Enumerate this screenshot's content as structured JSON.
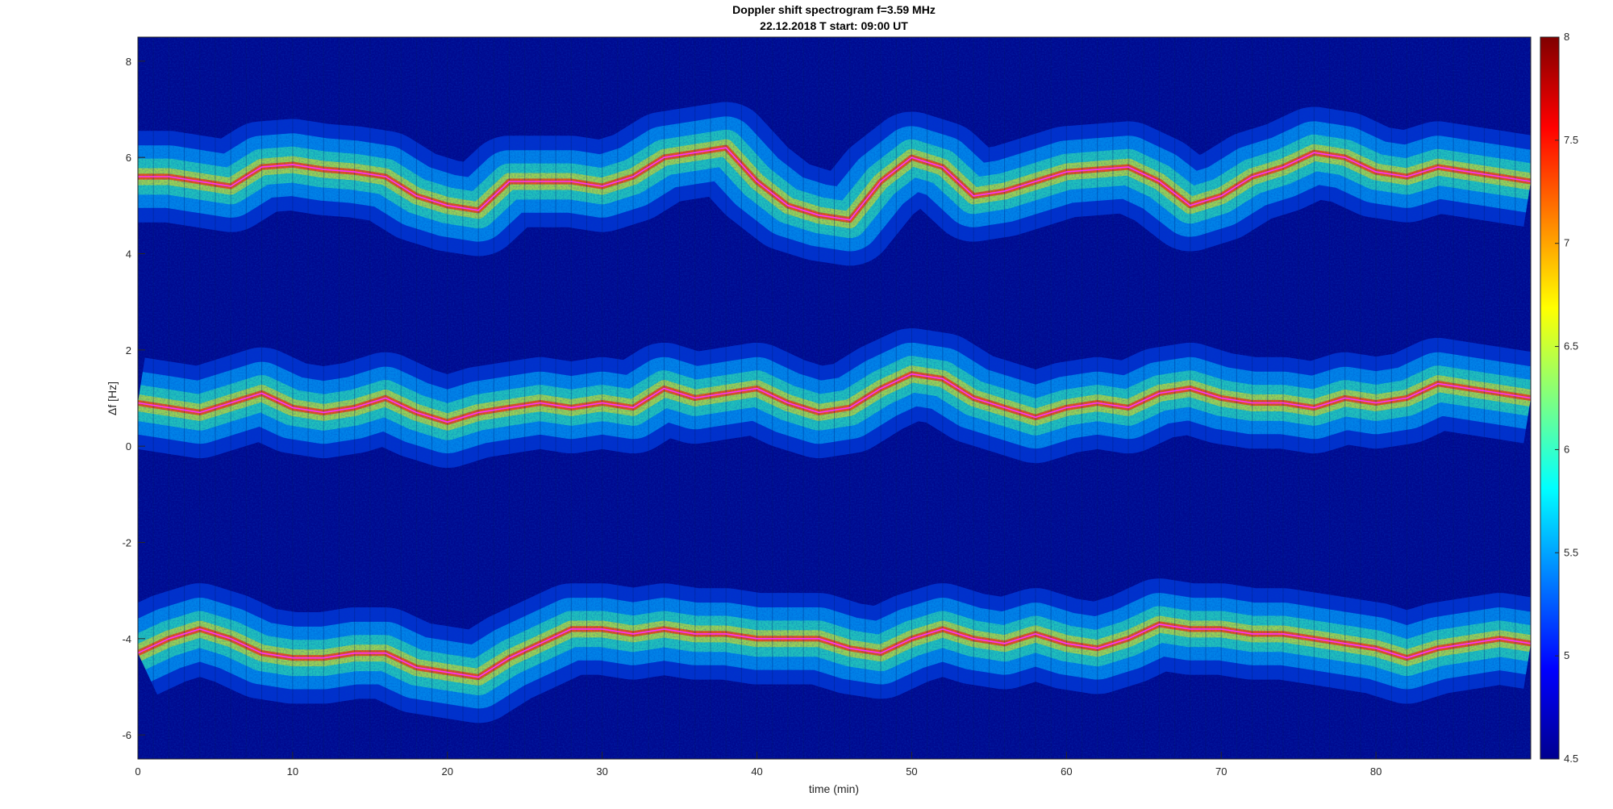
{
  "chart_data": {
    "type": "heatmap",
    "title": "Doppler shift spectrogram f=3.59 MHz",
    "subtitle": "22.12.2018   T start: 09:00 UT",
    "xlabel": "time (min)",
    "ylabel": "Δf [Hz]",
    "xlim": [
      0,
      90
    ],
    "ylim": [
      -6.5,
      8.5
    ],
    "x_ticks": [
      "0",
      "10",
      "20",
      "30",
      "40",
      "50",
      "60",
      "70",
      "80"
    ],
    "y_ticks": [
      "-6",
      "-4",
      "-2",
      "0",
      "2",
      "4",
      "6",
      "8"
    ],
    "colorbar": {
      "range": [
        4.5,
        8
      ],
      "ticks": [
        "4.5",
        "5",
        "5.5",
        "6",
        "6.5",
        "7",
        "7.5",
        "8"
      ],
      "colormap": "jet"
    },
    "background_color": "#000a8f",
    "trace_color": "#ff33ff",
    "series": [
      {
        "x": [
          0,
          2,
          4,
          6,
          8,
          10,
          12,
          14,
          16,
          18,
          20,
          22,
          24,
          26,
          28,
          30,
          32,
          34,
          36,
          38,
          40,
          42,
          44,
          46,
          48,
          50,
          52,
          54,
          56,
          58,
          60,
          62,
          64,
          66,
          68,
          70,
          72,
          74,
          76,
          78,
          80,
          82,
          84,
          86,
          88,
          90
        ],
        "y": [
          5.6,
          5.6,
          5.5,
          5.4,
          5.8,
          5.85,
          5.75,
          5.7,
          5.6,
          5.2,
          5.0,
          4.9,
          5.5,
          5.5,
          5.5,
          5.4,
          5.6,
          6.0,
          6.1,
          6.2,
          5.5,
          5.0,
          4.8,
          4.7,
          5.5,
          6.0,
          5.8,
          5.2,
          5.3,
          5.5,
          5.7,
          5.75,
          5.8,
          5.5,
          5.0,
          5.2,
          5.6,
          5.8,
          6.1,
          6.0,
          5.7,
          5.6,
          5.8,
          5.7,
          5.6,
          5.5
        ]
      },
      {
        "x": [
          0,
          2,
          4,
          6,
          8,
          10,
          12,
          14,
          16,
          18,
          20,
          22,
          24,
          26,
          28,
          30,
          32,
          34,
          36,
          38,
          40,
          42,
          44,
          46,
          48,
          50,
          52,
          54,
          56,
          58,
          60,
          62,
          64,
          66,
          68,
          70,
          72,
          74,
          76,
          78,
          80,
          82,
          84,
          86,
          88,
          90
        ],
        "y": [
          0.9,
          0.8,
          0.7,
          0.9,
          1.1,
          0.8,
          0.7,
          0.8,
          1.0,
          0.7,
          0.5,
          0.7,
          0.8,
          0.9,
          0.8,
          0.9,
          0.8,
          1.2,
          1.0,
          1.1,
          1.2,
          0.9,
          0.7,
          0.8,
          1.2,
          1.5,
          1.4,
          1.0,
          0.8,
          0.6,
          0.8,
          0.9,
          0.8,
          1.1,
          1.2,
          1.0,
          0.9,
          0.9,
          0.8,
          1.0,
          0.9,
          1.0,
          1.3,
          1.2,
          1.1,
          1.0
        ]
      },
      {
        "x": [
          0,
          2,
          4,
          6,
          8,
          10,
          12,
          14,
          16,
          18,
          20,
          22,
          24,
          26,
          28,
          30,
          32,
          34,
          36,
          38,
          40,
          42,
          44,
          46,
          48,
          50,
          52,
          54,
          56,
          58,
          60,
          62,
          64,
          66,
          68,
          70,
          72,
          74,
          76,
          78,
          80,
          82,
          84,
          86,
          88,
          90
        ],
        "y": [
          -4.3,
          -4.0,
          -3.8,
          -4.0,
          -4.3,
          -4.4,
          -4.4,
          -4.3,
          -4.3,
          -4.6,
          -4.7,
          -4.8,
          -4.4,
          -4.1,
          -3.8,
          -3.8,
          -3.9,
          -3.8,
          -3.9,
          -3.9,
          -4.0,
          -4.0,
          -4.0,
          -4.2,
          -4.3,
          -4.0,
          -3.8,
          -4.0,
          -4.1,
          -3.9,
          -4.1,
          -4.2,
          -4.0,
          -3.7,
          -3.8,
          -3.8,
          -3.9,
          -3.9,
          -4.0,
          -4.1,
          -4.2,
          -4.4,
          -4.2,
          -4.1,
          -4.0,
          -4.1
        ]
      }
    ]
  }
}
